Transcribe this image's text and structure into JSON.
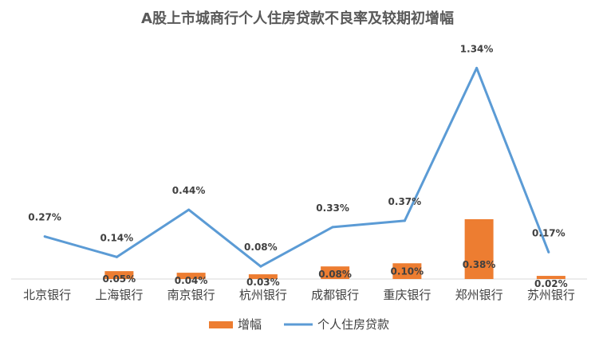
{
  "chart_data": {
    "type": "bar+line",
    "title": "A股上市城商行个人住房贷款不良率及较期初增幅",
    "categories": [
      "北京银行",
      "上海银行",
      "南京银行",
      "杭州银行",
      "成都银行",
      "重庆银行",
      "郑州银行",
      "苏州银行"
    ],
    "series": [
      {
        "name": "增幅",
        "type": "bar",
        "color": "#ED7D31",
        "values": [
          0,
          0.05,
          0.04,
          0.03,
          0.08,
          0.1,
          0.38,
          0.02
        ],
        "labels": [
          "",
          "0.05%",
          "0.04%",
          "0.03%",
          "0.08%",
          "0.10%",
          "0.38%",
          "0.02%"
        ]
      },
      {
        "name": "个人住房贷款",
        "type": "line",
        "color": "#5B9BD5",
        "values": [
          0.27,
          0.14,
          0.44,
          0.08,
          0.33,
          0.37,
          1.34,
          0.17
        ],
        "labels": [
          "0.27%",
          "0.14%",
          "0.44%",
          "0.08%",
          "0.33%",
          "0.37%",
          "1.34%",
          "0.17%"
        ]
      }
    ],
    "ylim": [
      0,
      1.6
    ],
    "grid": false,
    "legend": "bottom"
  }
}
